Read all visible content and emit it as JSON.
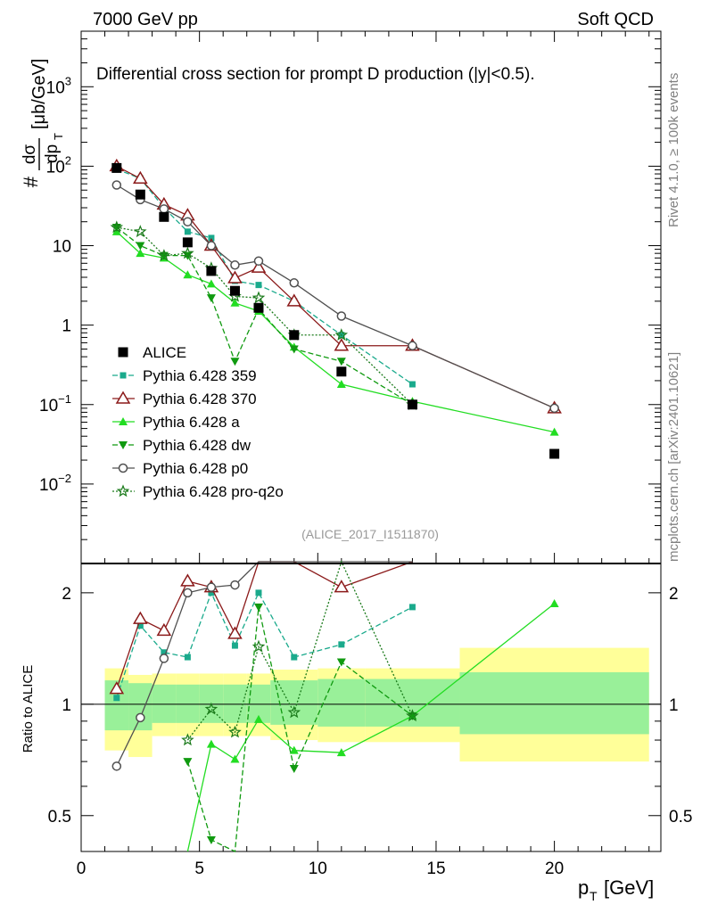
{
  "header": {
    "left": "7000 GeV pp",
    "right": "Soft QCD",
    "side_rivet": "Rivet 4.1.0, ≥ 100k events",
    "side_mcplots": "mcplots.cern.ch [arXiv:2401.10621]"
  },
  "chart_data": {
    "type": "line",
    "title": "Differential cross section for prompt D",
    "title_suffix": " production (|y|<0.5).",
    "ylabel": "#dσ/dpT [μb/GeV]",
    "ylabel_parts": {
      "prefix": "#",
      "num": "dσ",
      "den": "dp",
      "sub": "T",
      "unit": "[μb/GeV]"
    },
    "xlabel": "p_T [GeV]",
    "xlabel_parts": {
      "p": "p",
      "sub": "T",
      "unit": "[GeV]"
    },
    "ratio_ylabel": "Ratio to ALICE",
    "analysis_tag": "(ALICE_2017_I1511870)",
    "xlim": [
      0,
      24.5
    ],
    "ylim": [
      0.001,
      5000
    ],
    "ratio_ylim": [
      0.4,
      2.4
    ],
    "x_ticks": [
      "0",
      "5",
      "10",
      "15",
      "20"
    ],
    "y_ticks": [
      {
        "v": 0.01,
        "label": "10",
        "exp": "−2"
      },
      {
        "v": 0.1,
        "label": "10",
        "exp": "−1"
      },
      {
        "v": 1,
        "label": "1",
        "exp": ""
      },
      {
        "v": 10,
        "label": "10",
        "exp": ""
      },
      {
        "v": 100,
        "label": "10",
        "exp": "2"
      },
      {
        "v": 1000,
        "label": "10",
        "exp": "3"
      }
    ],
    "ratio_ticks": [
      "0.5",
      "1",
      "2"
    ],
    "bins": [
      {
        "lo": 1,
        "hi": 2,
        "x": 1.5,
        "data": 95,
        "y1": 0.75,
        "y2": 1.25,
        "g1": 0.85,
        "g2": 1.16
      },
      {
        "lo": 2,
        "hi": 3,
        "x": 2.5,
        "data": 44,
        "y1": 0.72,
        "y2": 1.2,
        "g1": 0.85,
        "g2": 1.14
      },
      {
        "lo": 3,
        "hi": 4,
        "x": 3.5,
        "data": 23,
        "y1": 0.82,
        "y2": 1.21,
        "g1": 0.89,
        "g2": 1.13
      },
      {
        "lo": 4,
        "hi": 5,
        "x": 4.5,
        "data": 11,
        "y1": 0.82,
        "y2": 1.21,
        "g1": 0.89,
        "g2": 1.13
      },
      {
        "lo": 5,
        "hi": 6,
        "x": 5.5,
        "data": 4.8,
        "y1": 0.82,
        "y2": 1.21,
        "g1": 0.89,
        "g2": 1.13
      },
      {
        "lo": 6,
        "hi": 7,
        "x": 6.5,
        "data": 2.7,
        "y1": 0.82,
        "y2": 1.21,
        "g1": 0.89,
        "g2": 1.13
      },
      {
        "lo": 7,
        "hi": 8,
        "x": 7.5,
        "data": 1.65,
        "y1": 0.82,
        "y2": 1.21,
        "g1": 0.89,
        "g2": 1.13
      },
      {
        "lo": 8,
        "hi": 10,
        "x": 9,
        "data": 0.75,
        "y1": 0.8,
        "y2": 1.24,
        "g1": 0.88,
        "g2": 1.16
      },
      {
        "lo": 10,
        "hi": 12,
        "x": 11,
        "data": 0.26,
        "y1": 0.79,
        "y2": 1.25,
        "g1": 0.87,
        "g2": 1.17
      },
      {
        "lo": 12,
        "hi": 16,
        "x": 14,
        "data": 0.1,
        "y1": 0.79,
        "y2": 1.25,
        "g1": 0.87,
        "g2": 1.17
      },
      {
        "lo": 16,
        "hi": 24,
        "x": 20,
        "data": 0.024,
        "y1": 0.7,
        "y2": 1.42,
        "g1": 0.83,
        "g2": 1.22
      }
    ],
    "series": [
      {
        "name": "Pythia 6.428 359",
        "color": "#1aaa8c",
        "dash": "6,3",
        "marker": "square",
        "values": [
          92,
          70,
          30,
          15,
          12.5,
          3.6,
          3.2,
          2.0,
          0.75,
          0.18,
          null
        ],
        "ratios": [
          1.04,
          1.63,
          1.38,
          1.34,
          2.0,
          1.44,
          2.0,
          1.34,
          1.45,
          1.83,
          null
        ]
      },
      {
        "name": "Pythia 6.428 370",
        "color": "#8b1a1a",
        "dash": "",
        "marker": "open-triangle",
        "values": [
          100,
          70,
          33,
          24,
          10,
          3.9,
          5.3,
          2.0,
          0.55,
          0.55,
          0.09
        ],
        "ratios": [
          1.1,
          1.7,
          1.58,
          2.15,
          2.07,
          1.55,
          2.55,
          2.55,
          2.07,
          2.55,
          null
        ]
      },
      {
        "name": "Pythia 6.428 a",
        "color": "#22dd22",
        "dash": "",
        "marker": "triangle",
        "values": [
          15,
          8,
          7,
          4.3,
          3.3,
          1.9,
          1.5,
          0.53,
          0.18,
          0.11,
          0.045
        ],
        "ratios": [
          null,
          null,
          null,
          0.3,
          0.78,
          0.71,
          0.91,
          0.75,
          0.74,
          0.93,
          1.87
        ]
      },
      {
        "name": "Pythia 6.428 dw",
        "color": "#109a10",
        "dash": "6,3",
        "marker": "down-triangle",
        "values": [
          17,
          10,
          7.5,
          7.5,
          2.2,
          0.35,
          1.6,
          0.5,
          0.35,
          0.1,
          null
        ],
        "ratios": [
          null,
          null,
          null,
          0.7,
          0.43,
          0.13,
          1.83,
          0.67,
          1.3,
          0.93,
          null
        ]
      },
      {
        "name": "Pythia 6.428 p0",
        "color": "#505050",
        "dash": "",
        "marker": "open-circle",
        "values": [
          58,
          38,
          29,
          20,
          10,
          5.7,
          6.4,
          3.4,
          1.3,
          0.55,
          0.09
        ],
        "ratios": [
          0.68,
          0.92,
          1.33,
          2.0,
          2.07,
          2.1,
          2.55,
          2.55,
          2.55,
          2.55,
          null
        ]
      },
      {
        "name": "Pythia 6.428 pro-q2o",
        "color": "#1a7a1a",
        "dash": "2,2",
        "marker": "star",
        "values": [
          17,
          15,
          7.5,
          8,
          5.2,
          2.3,
          2.2,
          0.75,
          0.75,
          0.1,
          null
        ],
        "ratios": [
          null,
          null,
          null,
          0.8,
          0.97,
          0.84,
          1.43,
          0.95,
          2.55,
          0.93,
          null
        ]
      }
    ],
    "legend": [
      {
        "label": "ALICE",
        "marker": "filled-square",
        "color": "#000000"
      },
      {
        "label": "Pythia 6.428 359",
        "marker": "square",
        "color": "#1aaa8c"
      },
      {
        "label": "Pythia 6.428 370",
        "marker": "open-triangle",
        "color": "#8b1a1a"
      },
      {
        "label": "Pythia 6.428 a",
        "marker": "triangle",
        "color": "#22dd22"
      },
      {
        "label": "Pythia 6.428 dw",
        "marker": "down-triangle",
        "color": "#109a10"
      },
      {
        "label": "Pythia 6.428 p0",
        "marker": "open-circle",
        "color": "#505050"
      },
      {
        "label": "Pythia 6.428 pro-q2o",
        "marker": "star",
        "color": "#1a7a1a"
      }
    ],
    "legend_position": "lower-left"
  }
}
